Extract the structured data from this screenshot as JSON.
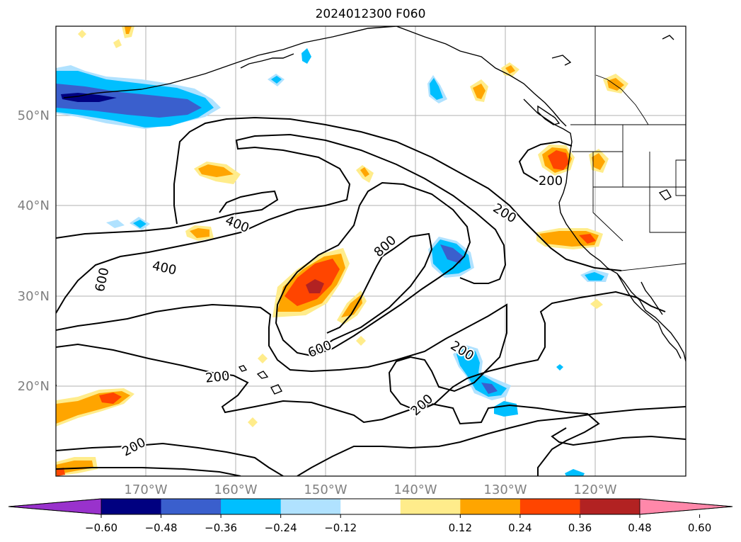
{
  "title": "2024012300 F060",
  "map": {
    "lat_labels": [
      "50°N",
      "40°N",
      "30°N",
      "20°N"
    ],
    "lon_labels": [
      "170°W",
      "160°W",
      "150°W",
      "140°W",
      "130°W",
      "120°W"
    ],
    "contour_labels": [
      "200",
      "200",
      "200",
      "200",
      "200",
      "200",
      "400",
      "400",
      "600",
      "600",
      "800"
    ],
    "colors": {
      "coast": "#000000",
      "grid": "#b0b0b0",
      "tick_label": "#808080"
    }
  },
  "colorbar": {
    "tick_labels": [
      "−0.60",
      "−0.48",
      "−0.36",
      "−0.24",
      "−0.12",
      "0.12",
      "0.24",
      "0.36",
      "0.48",
      "0.60"
    ],
    "under_color": "#9932CC",
    "over_color": "#FF88AA",
    "bins": [
      "#000080",
      "#3A5FCD",
      "#00BFFF",
      "#B0E2FF",
      "#FFFFFF",
      "#FFEC8B",
      "#FFA500",
      "#FF4500",
      "#B22222"
    ]
  }
}
